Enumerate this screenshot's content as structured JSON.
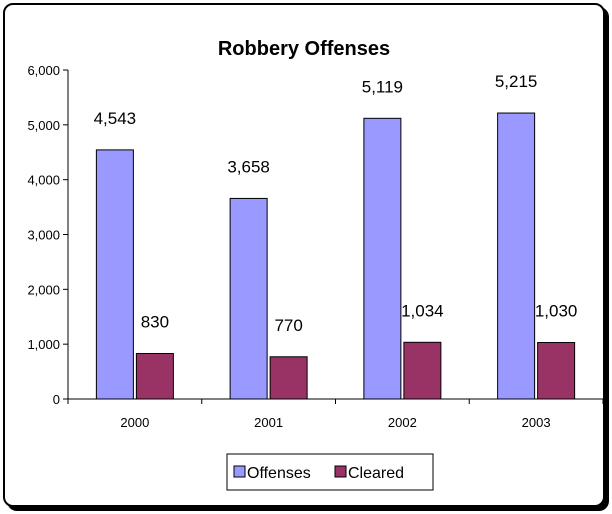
{
  "chart_data": {
    "type": "bar",
    "title": "Robbery Offenses",
    "categories": [
      "2000",
      "2001",
      "2002",
      "2003"
    ],
    "series": [
      {
        "name": "Offenses",
        "values": [
          4543,
          3658,
          5119,
          5215
        ],
        "labels": [
          "4,543",
          "3,658",
          "5,119",
          "5,215"
        ],
        "color": "#9999ff"
      },
      {
        "name": "Cleared",
        "values": [
          830,
          770,
          1034,
          1030
        ],
        "labels": [
          "830",
          "770",
          "1,034",
          "1,030"
        ],
        "color": "#993366"
      }
    ],
    "ylim": [
      0,
      6000
    ],
    "yticks": [
      0,
      1000,
      2000,
      3000,
      4000,
      5000,
      6000
    ],
    "ytick_labels": [
      "0",
      "1,000",
      "2,000",
      "3,000",
      "4,000",
      "5,000",
      "6,000"
    ],
    "grid": false,
    "legend_position": "bottom"
  }
}
